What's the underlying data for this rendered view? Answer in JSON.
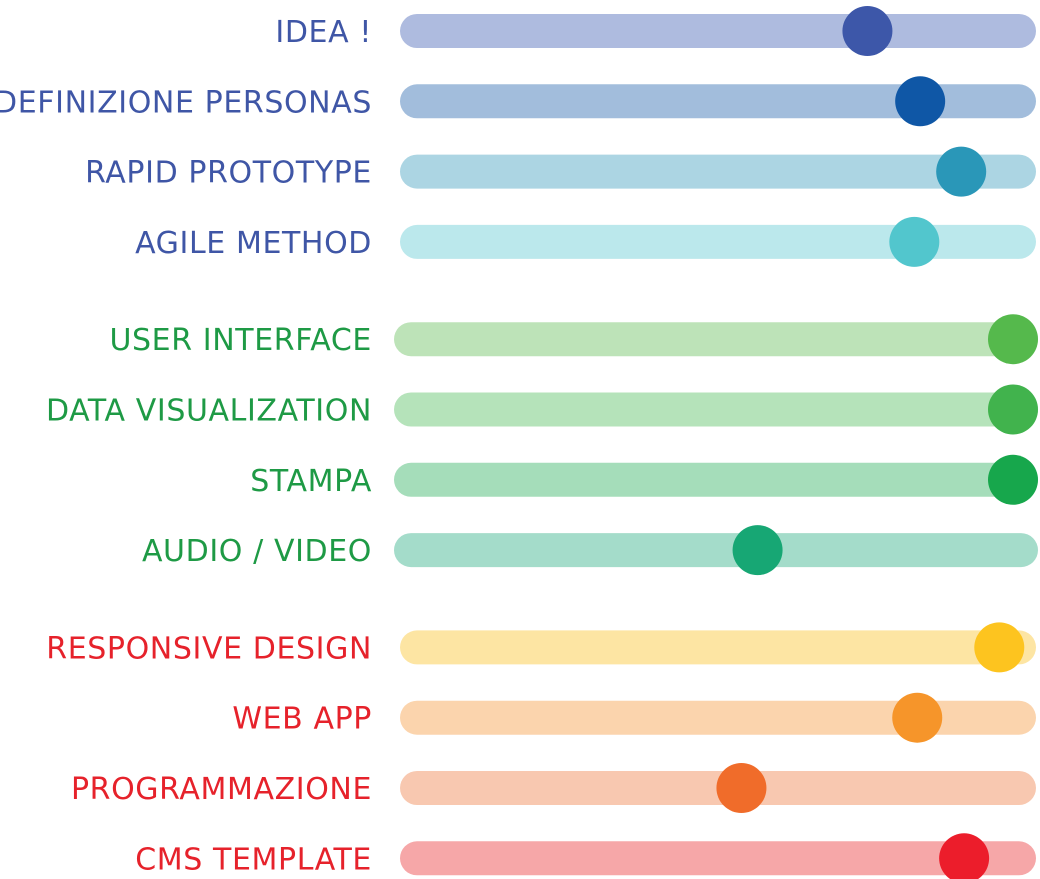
{
  "chart_data": {
    "type": "bar",
    "title": "",
    "xlabel": "",
    "ylabel": "",
    "xlim": [
      0,
      1
    ],
    "grid": false,
    "groups": [
      {
        "label_color": "#3f56a6",
        "items": [
          {
            "label": "IDEA !",
            "value": 0.755,
            "track_color": "#aebbdf",
            "knob_color": "#3d57a9"
          },
          {
            "label": "DEFINIZIONE PERSONAS",
            "value": 0.845,
            "track_color": "#a2bddc",
            "knob_color": "#0f57a6"
          },
          {
            "label": "RAPID PROTOTYPE",
            "value": 0.915,
            "track_color": "#acd5e3",
            "knob_color": "#2a97b8"
          },
          {
            "label": "AGILE METHOD",
            "value": 0.835,
            "track_color": "#bbe8ec",
            "knob_color": "#52c6cd"
          }
        ]
      },
      {
        "label_color": "#1e9a45",
        "items": [
          {
            "label": "USER INTERFACE",
            "value": 1.0,
            "track_color": "#bde3b8",
            "knob_color": "#55b94c"
          },
          {
            "label": "DATA VISUALIZATION",
            "value": 1.0,
            "track_color": "#b5e3ba",
            "knob_color": "#41b34d"
          },
          {
            "label": "STAMPA",
            "value": 1.0,
            "track_color": "#a5ddba",
            "knob_color": "#17a74c"
          },
          {
            "label": "AUDIO / VIDEO",
            "value": 0.57,
            "track_color": "#a4dcca",
            "knob_color": "#17a774"
          }
        ]
      },
      {
        "label_color": "#e6222b",
        "items": [
          {
            "label": "RESPONSIVE DESIGN",
            "value": 0.98,
            "track_color": "#fde5a3",
            "knob_color": "#fdc41f"
          },
          {
            "label": "WEB APP",
            "value": 0.84,
            "track_color": "#fbd4ad",
            "knob_color": "#f6952a"
          },
          {
            "label": "PROGRAMMAZIONE",
            "value": 0.54,
            "track_color": "#f8c8b0",
            "knob_color": "#f06c2a"
          },
          {
            "label": "CMS TEMPLATE",
            "value": 0.92,
            "track_color": "#f6a7a8",
            "knob_color": "#ec1d2b"
          }
        ]
      }
    ]
  }
}
